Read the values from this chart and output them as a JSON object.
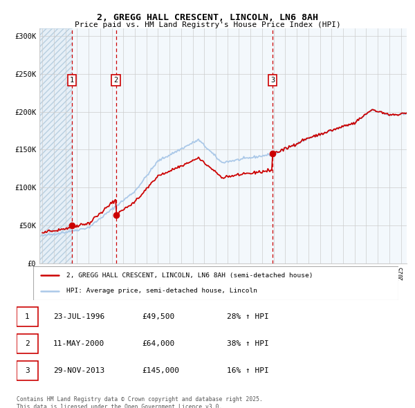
{
  "title": "2, GREGG HALL CRESCENT, LINCOLN, LN6 8AH",
  "subtitle": "Price paid vs. HM Land Registry's House Price Index (HPI)",
  "ylim": [
    0,
    310000
  ],
  "yticks": [
    0,
    50000,
    100000,
    150000,
    200000,
    250000,
    300000
  ],
  "ytick_labels": [
    "£0",
    "£50K",
    "£100K",
    "£150K",
    "£200K",
    "£250K",
    "£300K"
  ],
  "xlim_start": 1993.75,
  "xlim_end": 2025.5,
  "purchase_dates": [
    1996.56,
    2000.36,
    2013.91
  ],
  "purchase_prices": [
    49500,
    64000,
    145000
  ],
  "legend_line1": "2, GREGG HALL CRESCENT, LINCOLN, LN6 8AH (semi-detached house)",
  "legend_line2": "HPI: Average price, semi-detached house, Lincoln",
  "table_entries": [
    {
      "num": "1",
      "date": "23-JUL-1996",
      "price": "£49,500",
      "change": "28% ↑ HPI"
    },
    {
      "num": "2",
      "date": "11-MAY-2000",
      "price": "£64,000",
      "change": "38% ↑ HPI"
    },
    {
      "num": "3",
      "date": "29-NOV-2013",
      "price": "£145,000",
      "change": "16% ↑ HPI"
    }
  ],
  "footnote": "Contains HM Land Registry data © Crown copyright and database right 2025.\nThis data is licensed under the Open Government Licence v3.0.",
  "line_color_red": "#cc0000",
  "line_color_blue": "#6699cc",
  "line_color_blue_light": "#aac8e8",
  "marker_color_red": "#cc0000",
  "dashed_line_color": "#cc0000",
  "background_hatch_color": "#dce9f5",
  "hatch_color": "#b8cfe0",
  "grid_color": "#cccccc",
  "label_offsets": [
    190000,
    190000,
    190000
  ]
}
